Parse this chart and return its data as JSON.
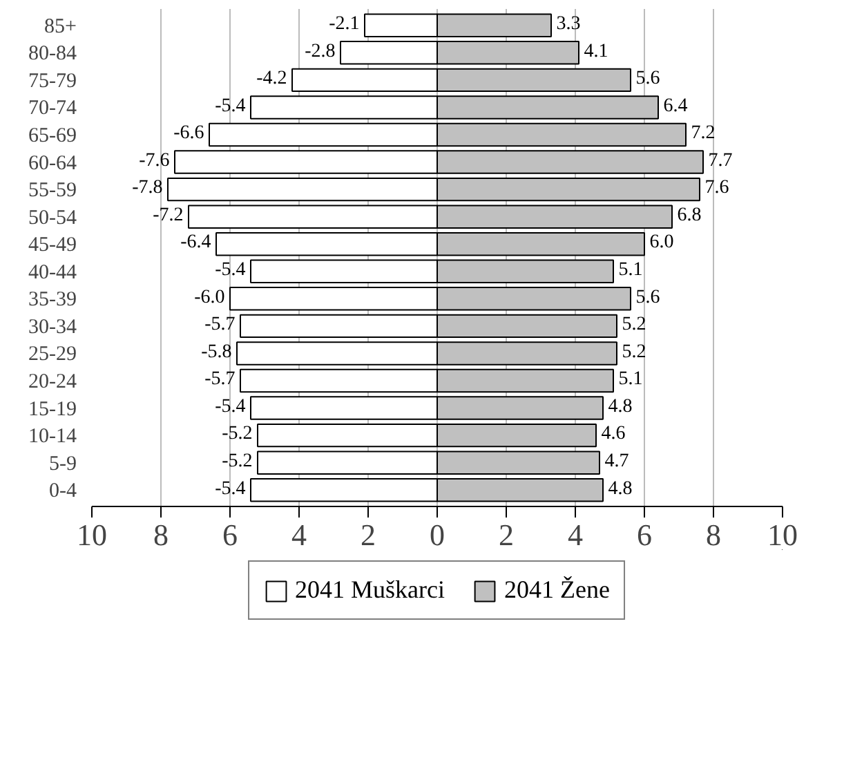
{
  "chart_data": {
    "type": "bar",
    "orientation": "horizontal",
    "stacked": true,
    "categories": [
      "85+",
      "80-84",
      "75-79",
      "70-74",
      "65-69",
      "60-64",
      "55-59",
      "50-54",
      "45-49",
      "40-44",
      "35-39",
      "30-34",
      "25-29",
      "20-24",
      "15-19",
      "10-14",
      "5-9",
      "0-4"
    ],
    "series": [
      {
        "name": "2041 Muškarci",
        "color": "#ffffff",
        "values": [
          -2.1,
          -2.8,
          -4.2,
          -5.4,
          -6.6,
          -7.6,
          -7.8,
          -7.2,
          -6.4,
          -5.4,
          -6.0,
          -5.7,
          -5.8,
          -5.7,
          -5.4,
          -5.2,
          -5.2,
          -5.4
        ],
        "value_labels": [
          "-2.1",
          "-2.8",
          "-4.2",
          "-5.4",
          "-6.6",
          "-7.6",
          "-7.8",
          "-7.2",
          "-6.4",
          "-5.4",
          "-6.0",
          "-5.7",
          "-5.8",
          "-5.7",
          "-5.4",
          "-5.2",
          "-5.2",
          "-5.4"
        ]
      },
      {
        "name": "2041 Žene",
        "color": "#c0c0c0",
        "values": [
          3.3,
          4.1,
          5.6,
          6.4,
          7.2,
          7.7,
          7.6,
          6.8,
          6.0,
          5.1,
          5.6,
          5.2,
          5.2,
          5.1,
          4.8,
          4.6,
          4.7,
          4.8
        ],
        "value_labels": [
          "3.3",
          "4.1",
          "5.6",
          "6.4",
          "7.2",
          "7.7",
          "7.6",
          "6.8",
          "6.0",
          "5.1",
          "5.6",
          "5.2",
          "5.2",
          "5.1",
          "4.8",
          "4.6",
          "4.7",
          "4.8"
        ]
      }
    ],
    "xlim": [
      -10,
      10
    ],
    "xticks": [
      {
        "value": -10,
        "label": "10"
      },
      {
        "value": -8,
        "label": "8"
      },
      {
        "value": -6,
        "label": "6"
      },
      {
        "value": -4,
        "label": "4"
      },
      {
        "value": -2,
        "label": "2"
      },
      0,
      2,
      4,
      6,
      8,
      10
    ],
    "grid": "x",
    "legend": "bottom"
  }
}
